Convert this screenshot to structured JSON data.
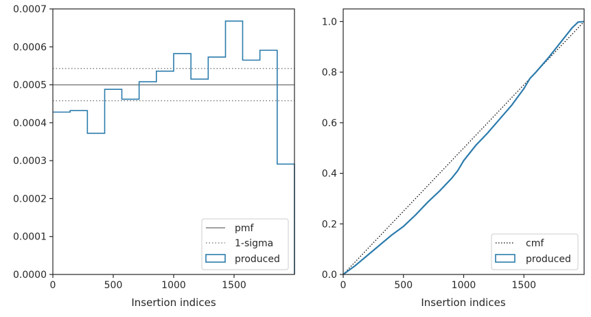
{
  "colors": {
    "produced": "#2b7bac",
    "pmf": "#808080",
    "sigma": "#808080",
    "cmf": "#000000",
    "axes": "#262626",
    "legend_border": "#cccccc"
  },
  "chart_data": [
    {
      "type": "histogram",
      "xlabel": "Insertion indices",
      "ylabel": "",
      "xlim": [
        0,
        2000
      ],
      "ylim": [
        0,
        0.0007
      ],
      "xticks": [
        {
          "value": 0,
          "label": "0"
        },
        {
          "value": 500,
          "label": "500"
        },
        {
          "value": 1000,
          "label": "1000"
        },
        {
          "value": 1500,
          "label": "1500"
        }
      ],
      "yticks": [
        {
          "value": 0,
          "label": "0.0000"
        },
        {
          "value": 0.0001,
          "label": "0.0001"
        },
        {
          "value": 0.0002,
          "label": "0.0002"
        },
        {
          "value": 0.0003,
          "label": "0.0003"
        },
        {
          "value": 0.0004,
          "label": "0.0004"
        },
        {
          "value": 0.0005,
          "label": "0.0005"
        },
        {
          "value": 0.0006,
          "label": "0.0006"
        },
        {
          "value": 0.0007,
          "label": "0.0007"
        }
      ],
      "bin_edges": [
        0,
        143,
        286,
        429,
        571,
        714,
        857,
        1000,
        1143,
        1286,
        1429,
        1571,
        1714,
        1857,
        2000
      ],
      "values": [
        0.000428,
        0.000432,
        0.000372,
        0.000488,
        0.000462,
        0.000508,
        0.000536,
        0.000582,
        0.000515,
        0.000573,
        0.000668,
        0.000565,
        0.000591,
        0.000291
      ],
      "pmf": 0.0005,
      "sigma_band": [
        0.000458,
        0.000543
      ],
      "legend": {
        "position": "lower right",
        "entries": [
          {
            "label": "pmf",
            "style": "solid-line"
          },
          {
            "label": "1-sigma",
            "style": "dotted-line"
          },
          {
            "label": "produced",
            "style": "box"
          }
        ]
      }
    },
    {
      "type": "line",
      "xlabel": "Insertion indices",
      "ylabel": "",
      "xlim": [
        0,
        2000
      ],
      "ylim": [
        0,
        1.05
      ],
      "xticks": [
        {
          "value": 0,
          "label": "0"
        },
        {
          "value": 500,
          "label": "500"
        },
        {
          "value": 1000,
          "label": "1000"
        },
        {
          "value": 1500,
          "label": "1500"
        }
      ],
      "yticks": [
        {
          "value": 0,
          "label": "0.0"
        },
        {
          "value": 0.2,
          "label": "0.2"
        },
        {
          "value": 0.4,
          "label": "0.4"
        },
        {
          "value": 0.6,
          "label": "0.6"
        },
        {
          "value": 0.8,
          "label": "0.8"
        },
        {
          "value": 1.0,
          "label": "1.0"
        }
      ],
      "reference_line": [
        [
          0,
          0
        ],
        [
          2000,
          1
        ]
      ],
      "produced_curve": {
        "x": [
          0,
          100,
          200,
          300,
          400,
          500,
          600,
          700,
          800,
          900,
          950,
          1000,
          1100,
          1200,
          1300,
          1400,
          1500,
          1550,
          1600,
          1700,
          1800,
          1850,
          1900,
          1950,
          2000
        ],
        "y": [
          0,
          0.035,
          0.075,
          0.115,
          0.155,
          0.19,
          0.235,
          0.285,
          0.33,
          0.38,
          0.41,
          0.45,
          0.51,
          0.56,
          0.615,
          0.67,
          0.735,
          0.775,
          0.8,
          0.855,
          0.915,
          0.945,
          0.975,
          0.998,
          1.0
        ]
      },
      "legend": {
        "position": "lower right",
        "entries": [
          {
            "label": "cmf",
            "style": "dotted-line"
          },
          {
            "label": "produced",
            "style": "box"
          }
        ]
      }
    }
  ]
}
